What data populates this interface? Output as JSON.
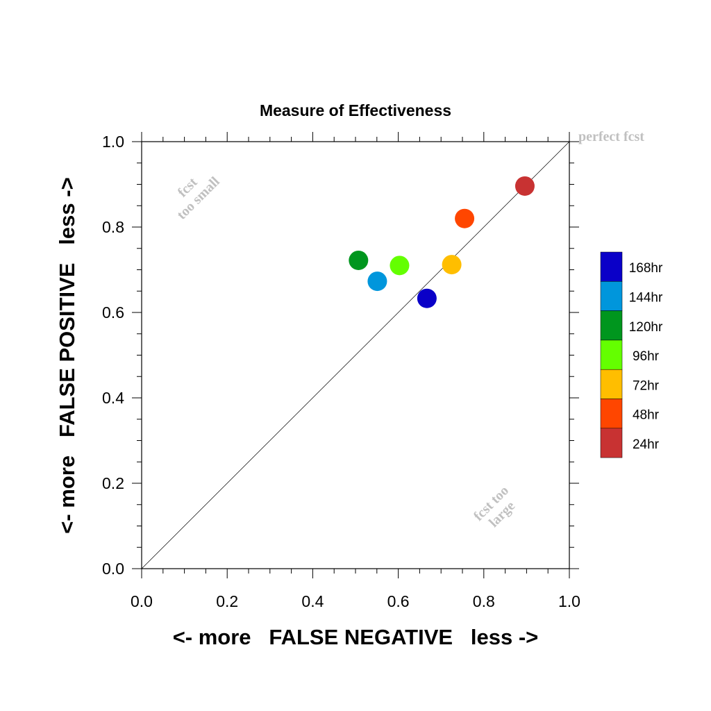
{
  "chart_data": {
    "type": "scatter",
    "title": "Measure of Effectiveness",
    "xlabel": "<- more   FALSE NEGATIVE   less ->",
    "ylabel": "<- more   FALSE POSITIVE   less ->",
    "xlim": [
      0,
      1
    ],
    "ylim": [
      0,
      1
    ],
    "x_ticks": [
      "0.0",
      "0.2",
      "0.4",
      "0.6",
      "0.8",
      "1.0"
    ],
    "y_ticks": [
      "0.0",
      "0.2",
      "0.4",
      "0.6",
      "0.8",
      "1.0"
    ],
    "reference_line": {
      "from": [
        0,
        0
      ],
      "to": [
        1,
        1
      ],
      "label": "perfect fcst"
    },
    "annotations": [
      {
        "text_lines": [
          "fcst",
          "too small"
        ],
        "x": 0.12,
        "y": 0.88
      },
      {
        "text_lines": [
          "fcst too",
          "large"
        ],
        "x": 0.83,
        "y": 0.14
      }
    ],
    "points": [
      {
        "label": "168hr",
        "x": 0.667,
        "y": 0.633,
        "color": "#0a00c8"
      },
      {
        "label": "144hr",
        "x": 0.551,
        "y": 0.673,
        "color": "#0096dc"
      },
      {
        "label": "120hr",
        "x": 0.507,
        "y": 0.722,
        "color": "#00961e"
      },
      {
        "label": "96hr",
        "x": 0.603,
        "y": 0.71,
        "color": "#64ff00"
      },
      {
        "label": "72hr",
        "x": 0.725,
        "y": 0.712,
        "color": "#ffbe00"
      },
      {
        "label": "48hr",
        "x": 0.755,
        "y": 0.82,
        "color": "#ff4600"
      },
      {
        "label": "24hr",
        "x": 0.896,
        "y": 0.896,
        "color": "#c83232"
      }
    ],
    "legend": {
      "placement": "right",
      "entries": [
        {
          "label": "168hr",
          "color": "#0a00c8"
        },
        {
          "label": "144hr",
          "color": "#0096dc"
        },
        {
          "label": "120hr",
          "color": "#00961e"
        },
        {
          "label": "96hr",
          "color": "#64ff00"
        },
        {
          "label": "72hr",
          "color": "#ffbe00"
        },
        {
          "label": "48hr",
          "color": "#ff4600"
        },
        {
          "label": "24hr",
          "color": "#c83232"
        }
      ]
    },
    "grid": false
  }
}
